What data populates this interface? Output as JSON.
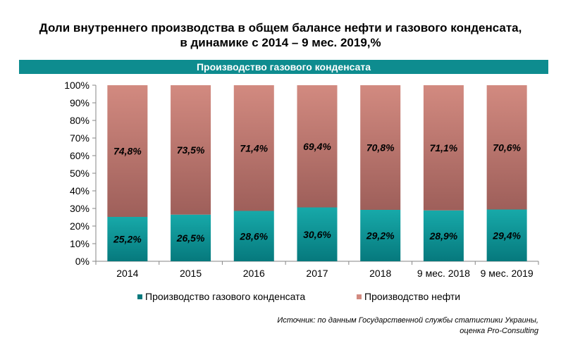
{
  "header": {
    "title_line1": "Доли внутреннего производства в общем балансе нефти и газового конденсата,",
    "title_line2": "в динамике с 2014 – 9 мес. 2019,%",
    "banner": "Производство газового конденсата"
  },
  "chart_data": {
    "type": "bar",
    "stacked": true,
    "categories": [
      "2014",
      "2015",
      "2016",
      "2017",
      "2018",
      "9 мес. 2018",
      "9 мес. 2019"
    ],
    "series": [
      {
        "name": "Производство газового конденсата",
        "values": [
          25.2,
          26.5,
          28.6,
          30.6,
          29.2,
          28.9,
          29.4
        ],
        "labels": [
          "25,2%",
          "26,5%",
          "28,6%",
          "30,6%",
          "29,2%",
          "28,9%",
          "29,4%"
        ]
      },
      {
        "name": "Производство нефти",
        "values": [
          74.8,
          73.5,
          71.4,
          69.4,
          70.8,
          71.1,
          70.6
        ],
        "labels": [
          "74,8%",
          "73,5%",
          "71,4%",
          "69,4%",
          "70,8%",
          "71,1%",
          "70,6%"
        ]
      }
    ],
    "y_ticks": [
      "0%",
      "10%",
      "20%",
      "30%",
      "40%",
      "50%",
      "60%",
      "70%",
      "80%",
      "90%",
      "100%"
    ],
    "ylim": [
      0,
      100
    ],
    "grid": false,
    "legend": "bottom",
    "colors": {
      "condensate_top": "#17a9a9",
      "condensate_bottom": "#06797d",
      "oil_top": "#d28a80",
      "oil_bottom": "#9e5f5a"
    }
  },
  "source": {
    "line1": "Источник: по данным Государственной службы статистики Украины,",
    "line2": "оценка Pro-Consulting"
  }
}
